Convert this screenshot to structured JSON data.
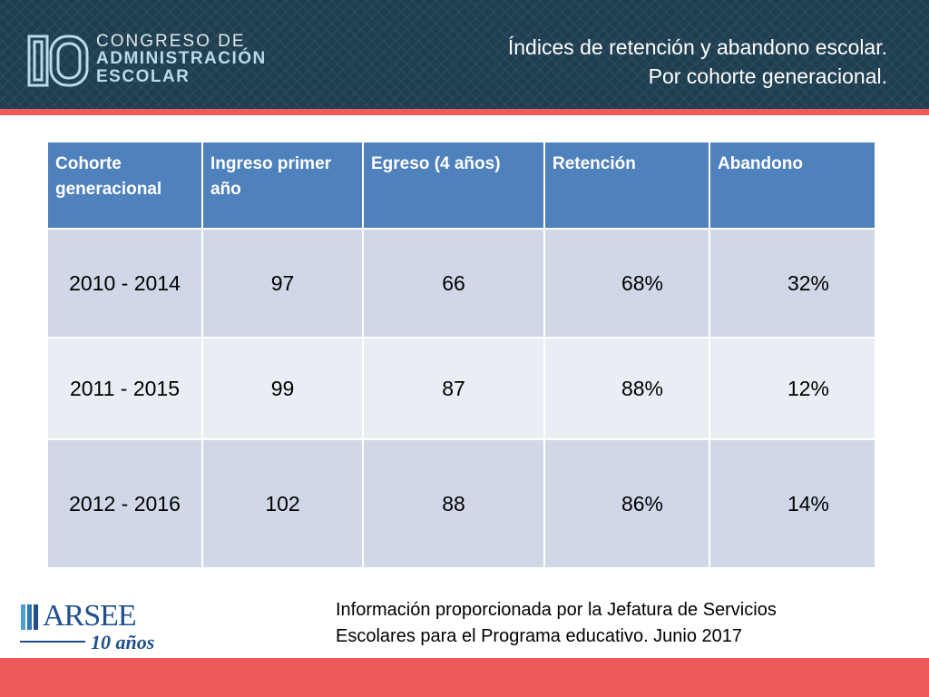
{
  "header": {
    "logo": {
      "mark": "IO",
      "line1": "CONGRESO DE",
      "line2": "ADMINISTRACIÓN",
      "line3": "ESCOLAR"
    },
    "title_line1": "Índices de retención y abandono escolar.",
    "title_line2": "Por cohorte generacional.",
    "colors": {
      "background": "#1f3f51",
      "stripe": "#f15a5a",
      "logo_accent": "#b9dbe6"
    }
  },
  "table": {
    "columns": [
      "Cohorte generacional",
      "Ingreso primer año",
      "Egreso  (4 años)",
      "Retención",
      "Abandono"
    ],
    "rows": [
      [
        "2010 - 2014",
        "97",
        "66",
        "68%",
        "32%"
      ],
      [
        "2011 - 2015",
        "99",
        "87",
        "88%",
        "12%"
      ],
      [
        "2012 - 2016",
        "102",
        "88",
        "86%",
        "14%"
      ]
    ],
    "colors": {
      "header": "#4f81bd",
      "row_odd": "#d0d8e8",
      "row_even": "#e9edf4"
    }
  },
  "footer": {
    "logo": {
      "name": "ARSEE",
      "sub": "10 años"
    },
    "note_line1": "Información proporcionada por la Jefatura de Servicios",
    "note_line2": "Escolares para el Programa educativo.  Junio 2017",
    "band_color": "#f15a5a"
  }
}
